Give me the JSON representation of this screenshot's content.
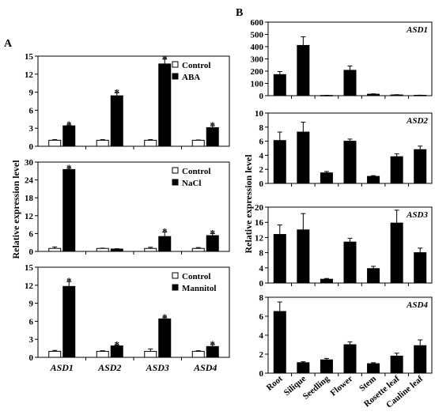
{
  "panel_labels": {
    "a": "A",
    "b": "B"
  },
  "ylabel": "Relative expression level",
  "legend_markers": {
    "control": "□",
    "treatment": "■"
  },
  "significance_marker": "*",
  "colors": {
    "control": "#ffffff",
    "treatment": "#000000",
    "axis": "#000000"
  },
  "chart_data": [
    {
      "type": "bar",
      "panel": "A",
      "ylim": [
        0,
        15
      ],
      "yticks": [
        0,
        3,
        6,
        9,
        12,
        15
      ],
      "categories": [
        "ASD1",
        "ASD2",
        "ASD3",
        "ASD4"
      ],
      "show_category_labels": false,
      "series": [
        {
          "name": "Control",
          "values": [
            1.0,
            1.0,
            1.0,
            1.0
          ],
          "errors": [
            0.1,
            0.1,
            0.1,
            0.05
          ]
        },
        {
          "name": "ABA",
          "values": [
            3.4,
            8.4,
            13.7,
            3.1
          ],
          "errors": [
            0.15,
            0.5,
            0.8,
            0.3
          ],
          "significant": [
            true,
            true,
            true,
            true
          ]
        }
      ]
    },
    {
      "type": "bar",
      "panel": "A",
      "ylim": [
        0,
        30
      ],
      "yticks": [
        0,
        6,
        12,
        18,
        24,
        30
      ],
      "categories": [
        "ASD1",
        "ASD2",
        "ASD3",
        "ASD4"
      ],
      "show_category_labels": false,
      "series": [
        {
          "name": "Control",
          "values": [
            1.0,
            1.0,
            1.0,
            1.0
          ],
          "errors": [
            0.5,
            0.1,
            0.4,
            0.3
          ]
        },
        {
          "name": "NaCl",
          "values": [
            27.5,
            0.8,
            5.0,
            5.3
          ],
          "errors": [
            0.4,
            0.1,
            1.5,
            0.7
          ],
          "significant": [
            true,
            false,
            true,
            true
          ]
        }
      ]
    },
    {
      "type": "bar",
      "panel": "A",
      "ylim": [
        0,
        15
      ],
      "yticks": [
        0,
        3,
        6,
        9,
        12,
        15
      ],
      "categories": [
        "ASD1",
        "ASD2",
        "ASD3",
        "ASD4"
      ],
      "show_category_labels": true,
      "series": [
        {
          "name": "Control",
          "values": [
            1.0,
            1.0,
            1.0,
            1.0
          ],
          "errors": [
            0.15,
            0.1,
            0.4,
            0.1
          ]
        },
        {
          "name": "Mannitol",
          "values": [
            11.8,
            1.9,
            6.4,
            1.8
          ],
          "errors": [
            0.8,
            0.15,
            0.2,
            0.3
          ],
          "significant": [
            true,
            true,
            true,
            true
          ]
        }
      ]
    },
    {
      "type": "bar",
      "panel": "B",
      "title": "ASD1",
      "ylim": [
        0,
        600
      ],
      "yticks": [
        0,
        100,
        200,
        300,
        400,
        500,
        600
      ],
      "categories": [
        "Root",
        "Silique",
        "Seedling",
        "Flower",
        "Stem",
        "Rosette leaf",
        "Cauline leaf"
      ],
      "show_category_labels": false,
      "values": [
        172,
        410,
        2,
        207,
        12,
        6,
        3
      ],
      "errors": [
        25,
        70,
        1,
        35,
        3,
        2,
        1
      ]
    },
    {
      "type": "bar",
      "panel": "B",
      "title": "ASD2",
      "ylim": [
        0,
        10
      ],
      "yticks": [
        0,
        2,
        4,
        6,
        8,
        10
      ],
      "categories": [
        "Root",
        "Silique",
        "Seedling",
        "Flower",
        "Stem",
        "Rosette leaf",
        "Cauline leaf"
      ],
      "show_category_labels": false,
      "values": [
        6.1,
        7.3,
        1.5,
        6.0,
        1.0,
        3.8,
        4.8
      ],
      "errors": [
        1.2,
        1.4,
        0.2,
        0.3,
        0.1,
        0.4,
        0.5
      ]
    },
    {
      "type": "bar",
      "panel": "B",
      "title": "ASD3",
      "ylim": [
        0,
        20
      ],
      "yticks": [
        0,
        4,
        8,
        12,
        16,
        20
      ],
      "categories": [
        "Root",
        "Silique",
        "Seedling",
        "Flower",
        "Stem",
        "Rosette leaf",
        "Cauline leaf"
      ],
      "show_category_labels": false,
      "values": [
        12.8,
        14.0,
        1.0,
        10.8,
        3.8,
        15.8,
        8.0
      ],
      "errors": [
        2.5,
        4.3,
        0.2,
        1.0,
        0.6,
        3.4,
        1.2
      ]
    },
    {
      "type": "bar",
      "panel": "B",
      "title": "ASD4",
      "ylim": [
        0,
        8
      ],
      "yticks": [
        0,
        2,
        4,
        6,
        8
      ],
      "categories": [
        "Root",
        "Silique",
        "Seedling",
        "Flower",
        "Stem",
        "Rosette leaf",
        "Cauline leaf"
      ],
      "show_category_labels": true,
      "values": [
        6.5,
        1.1,
        1.4,
        3.0,
        1.0,
        1.8,
        2.9
      ],
      "errors": [
        1.0,
        0.1,
        0.15,
        0.3,
        0.1,
        0.3,
        0.6
      ]
    }
  ]
}
